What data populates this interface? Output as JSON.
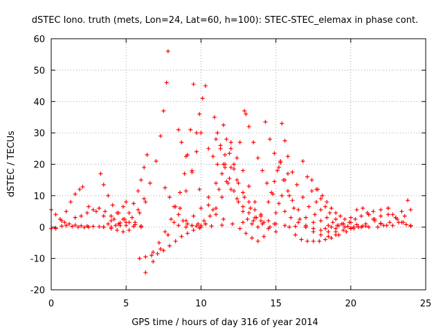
{
  "chart_data": {
    "type": "scatter",
    "title": "dSTEC Iono. truth (mets, Lon=24, Lat=60, h=100): STEC-STEC_elemax in phase cont.",
    "xlabel": "GPS time / hours of day 316 of year 2014",
    "ylabel": "dSTEC  / TECUs",
    "xlim": [
      0,
      25
    ],
    "ylim": [
      -20,
      60
    ],
    "xticks": [
      "0",
      "5",
      "10",
      "15",
      "20",
      "25"
    ],
    "yticks": [
      "-20",
      "-10",
      "0",
      "10",
      "20",
      "30",
      "40",
      "50",
      "60"
    ],
    "grid": true,
    "marker": "+",
    "color": "#ff0000",
    "series": [
      {
        "x": [
          0.0,
          0.3,
          0.7,
          1.0,
          1.4,
          1.8,
          2.2,
          2.5
        ],
        "y": [
          -0.5,
          -0.3,
          0.3,
          0.5,
          0.2,
          0.0,
          -0.1,
          0.0
        ]
      },
      {
        "x": [
          0.0,
          0.3,
          0.6,
          0.9,
          1.2,
          1.6,
          2.0,
          2.4,
          2.8,
          3.2,
          3.5
        ],
        "y": [
          5.5,
          4.0,
          2.5,
          1.5,
          1.0,
          0.6,
          0.4,
          0.3,
          0.2,
          0.1,
          0.0
        ]
      },
      {
        "x": [
          0.3,
          0.7,
          1.0,
          1.3,
          1.6,
          1.9,
          2.1
        ],
        "y": [
          -0.5,
          2.0,
          5.0,
          8.0,
          10.5,
          12.0,
          12.8
        ]
      },
      {
        "x": [
          1.6,
          2.0,
          2.4,
          2.8,
          3.2,
          3.6,
          4.0
        ],
        "y": [
          3.0,
          3.5,
          4.5,
          5.5,
          6.0,
          5.0,
          3.5
        ]
      },
      {
        "x": [
          2.5,
          3.0,
          3.5,
          4.0,
          4.5,
          5.0,
          5.5,
          6.0
        ],
        "y": [
          6.5,
          5.0,
          3.5,
          2.0,
          1.0,
          0.5,
          0.2,
          0.0
        ]
      },
      {
        "x": [
          3.3,
          3.5,
          3.8,
          4.1,
          4.4,
          4.8,
          5.2,
          5.6,
          6.0
        ],
        "y": [
          17.0,
          13.5,
          10.0,
          7.0,
          4.5,
          2.5,
          1.5,
          0.8,
          0.3
        ]
      },
      {
        "x": [
          3.5,
          4.0,
          4.4,
          4.8,
          5.2,
          5.6,
          5.9,
          6.3
        ],
        "y": [
          0.0,
          -0.5,
          -1.0,
          -1.5,
          -1.0,
          1.5,
          4.5,
          8.0
        ]
      },
      {
        "x": [
          4.0,
          4.3,
          4.6,
          4.9,
          5.2,
          5.5,
          5.8,
          6.0,
          6.2,
          6.4
        ],
        "y": [
          0.0,
          0.5,
          1.3,
          2.5,
          4.5,
          7.5,
          11.5,
          15.0,
          19.0,
          23.0
        ]
      },
      {
        "x": [
          3.8,
          4.2,
          4.5,
          4.8,
          5.0
        ],
        "y": [
          1.0,
          2.5,
          4.5,
          6.5,
          8.0
        ]
      },
      {
        "x": [
          4.6,
          5.0,
          5.4,
          5.8,
          6.2,
          6.6,
          7.0,
          7.3,
          7.5,
          7.7,
          7.8
        ],
        "y": [
          0.5,
          1.5,
          3.0,
          5.5,
          9.0,
          14.0,
          21.0,
          29.0,
          37.0,
          46.0,
          56.0
        ]
      },
      {
        "x": [
          5.9,
          6.3,
          6.7,
          7.1,
          7.5,
          7.9,
          8.3,
          8.7,
          9.1,
          9.5,
          9.9
        ],
        "y": [
          -10.0,
          -9.5,
          -9.0,
          -8.5,
          -7.5,
          -6.0,
          -4.5,
          -3.0,
          -2.0,
          -1.0,
          -0.3
        ]
      },
      {
        "x": [
          6.3,
          6.8,
          7.3,
          7.8,
          8.2,
          8.6,
          9.0,
          9.4,
          9.7,
          10.0
        ],
        "y": [
          -14.5,
          -11.0,
          -7.0,
          -2.5,
          1.5,
          6.0,
          11.5,
          18.0,
          24.0,
          30.0
        ]
      },
      {
        "x": [
          6.8,
          7.2,
          7.6,
          8.0,
          8.3,
          8.6,
          8.9,
          9.1,
          9.3,
          9.5
        ],
        "y": [
          -8.0,
          -5.0,
          -1.5,
          2.5,
          6.5,
          11.0,
          17.0,
          23.0,
          31.0,
          45.5
        ]
      },
      {
        "x": [
          7.6,
          7.9,
          8.2,
          8.5,
          8.8,
          9.1,
          9.4,
          9.7,
          10.0,
          10.3
        ],
        "y": [
          12.5,
          9.5,
          6.5,
          4.0,
          2.0,
          1.0,
          0.5,
          0.3,
          0.5,
          1.0
        ]
      },
      {
        "x": [
          8.5,
          8.7,
          9.0,
          9.4,
          9.9,
          10.5,
          11.0,
          11.5
        ],
        "y": [
          31.0,
          27.0,
          22.5,
          17.5,
          12.0,
          7.0,
          4.0,
          2.5
        ]
      },
      {
        "x": [
          8.5,
          9.0,
          9.5,
          10.0,
          10.5,
          11.0,
          11.5,
          12.0
        ],
        "y": [
          0.5,
          2.0,
          3.5,
          6.0,
          9.5,
          14.0,
          20.0,
          27.0
        ]
      },
      {
        "x": [
          9.0,
          9.4,
          9.8,
          10.2,
          10.6,
          11.0,
          11.4,
          11.8,
          12.2,
          12.6,
          13.0
        ],
        "y": [
          0.0,
          0.5,
          1.0,
          2.0,
          3.5,
          6.0,
          9.5,
          14.0,
          20.0,
          27.0,
          36.0
        ]
      },
      {
        "x": [
          9.7,
          9.9,
          10.1,
          10.3
        ],
        "y": [
          30.0,
          36.0,
          41.0,
          45.0
        ]
      },
      {
        "x": [
          10.3,
          10.8,
          11.2,
          11.6,
          12.0,
          12.4,
          12.8,
          13.2,
          13.6,
          14.0
        ],
        "y": [
          1.0,
          5.5,
          12.0,
          19.0,
          25.0,
          22.0,
          18.0,
          13.0,
          8.0,
          4.0
        ]
      },
      {
        "x": [
          10.5,
          10.8,
          11.1,
          11.4,
          11.7,
          12.0,
          12.4,
          12.8,
          13.2,
          13.6,
          14.0
        ],
        "y": [
          25.0,
          22.5,
          20.0,
          17.0,
          14.5,
          12.0,
          9.0,
          6.5,
          4.5,
          3.0,
          2.0
        ]
      },
      {
        "x": [
          10.9,
          11.1,
          11.3,
          11.6,
          11.9,
          12.2,
          12.5,
          12.8,
          13.1,
          13.4,
          13.8
        ],
        "y": [
          35.0,
          30.0,
          25.0,
          20.0,
          15.5,
          11.5,
          8.0,
          5.0,
          2.5,
          1.0,
          0.0
        ]
      },
      {
        "x": [
          11.0,
          11.3,
          11.6,
          12.0,
          12.4,
          12.8,
          13.2,
          13.6,
          14.0,
          14.5,
          15.0
        ],
        "y": [
          28.0,
          26.0,
          23.0,
          19.0,
          15.0,
          11.0,
          8.0,
          5.5,
          3.5,
          2.0,
          1.0
        ]
      },
      {
        "x": [
          11.5,
          11.7,
          11.9,
          12.2,
          12.5,
          12.9,
          13.3,
          13.7,
          14.1,
          14.5,
          15.0
        ],
        "y": [
          32.5,
          28.0,
          23.5,
          18.5,
          14.0,
          9.5,
          6.0,
          3.0,
          1.0,
          -0.5,
          -1.5
        ]
      },
      {
        "x": [
          10.0,
          10.7,
          11.4,
          12.1,
          12.8,
          13.5,
          14.2,
          14.9,
          15.6,
          16.3,
          17.0
        ],
        "y": [
          0.0,
          0.3,
          0.6,
          1.0,
          1.5,
          2.0,
          1.5,
          1.0,
          0.5,
          0.2,
          0.0
        ]
      },
      {
        "x": [
          12.6,
          13.0,
          13.4,
          13.8,
          14.2,
          14.6,
          15.0,
          15.4,
          15.8
        ],
        "y": [
          -0.5,
          -2.0,
          -3.5,
          -4.5,
          -3.0,
          0.0,
          4.5,
          10.0,
          17.0
        ]
      },
      {
        "x": [
          12.9,
          13.2,
          13.5,
          13.8,
          14.1,
          14.4,
          14.8,
          15.2,
          15.6,
          16.0,
          16.5,
          17.0
        ],
        "y": [
          37.0,
          32.0,
          27.0,
          22.0,
          18.0,
          14.0,
          10.5,
          7.5,
          5.0,
          3.0,
          1.5,
          0.5
        ]
      },
      {
        "x": [
          14.3,
          14.6,
          14.9,
          15.2,
          15.5,
          15.8,
          16.1,
          16.5,
          17.0,
          17.5
        ],
        "y": [
          33.5,
          28.0,
          23.5,
          19.0,
          15.0,
          11.5,
          8.5,
          5.5,
          3.0,
          1.5
        ]
      },
      {
        "x": [
          14.5,
          14.7,
          14.9,
          15.1,
          15.3
        ],
        "y": [
          8.0,
          11.0,
          14.5,
          18.0,
          21.0
        ]
      },
      {
        "x": [
          15.4,
          15.6,
          15.8,
          16.1,
          16.4,
          16.8,
          17.2,
          17.6,
          18.0,
          18.5,
          19.0
        ],
        "y": [
          33.0,
          27.5,
          22.5,
          17.5,
          13.5,
          9.5,
          6.5,
          4.0,
          2.0,
          0.5,
          -0.5
        ]
      },
      {
        "x": [
          15.3,
          15.6,
          15.9,
          16.2,
          16.6,
          17.0,
          17.5,
          18.0,
          18.5,
          19.0
        ],
        "y": [
          20.5,
          15.0,
          10.0,
          6.0,
          2.5,
          0.0,
          -1.5,
          -2.5,
          -3.0,
          -2.5
        ]
      },
      {
        "x": [
          15.9,
          16.3,
          16.7,
          17.1,
          17.5,
          17.9,
          18.3,
          18.7,
          19.2,
          19.7,
          20.2,
          20.7
        ],
        "y": [
          0.0,
          -2.5,
          -4.0,
          -4.5,
          -4.5,
          -4.5,
          -4.0,
          -3.5,
          -2.5,
          -1.5,
          -0.5,
          0.0
        ]
      },
      {
        "x": [
          16.8,
          17.1,
          17.4,
          17.7,
          18.0,
          18.4,
          18.8,
          19.2,
          19.6,
          20.0
        ],
        "y": [
          21.0,
          16.0,
          11.5,
          8.0,
          5.5,
          3.0,
          1.5,
          0.5,
          0.0,
          -0.3
        ]
      },
      {
        "x": [
          17.4,
          17.7,
          18.0,
          18.3,
          18.6,
          19.0,
          19.4,
          19.8,
          20.2
        ],
        "y": [
          15.0,
          12.0,
          9.0,
          6.5,
          4.5,
          2.5,
          1.0,
          0.2,
          0.0
        ]
      },
      {
        "x": [
          17.8,
          18.1,
          18.4,
          18.7,
          19.0,
          19.3,
          19.6,
          20.0,
          20.4,
          20.8,
          21.2
        ],
        "y": [
          12.0,
          10.0,
          8.0,
          6.0,
          4.5,
          3.5,
          2.5,
          1.5,
          0.8,
          0.3,
          0.0
        ]
      },
      {
        "x": [
          17.0,
          17.5,
          18.0,
          18.5,
          19.0,
          19.5,
          20.0,
          20.5,
          21.0
        ],
        "y": [
          0.0,
          -0.5,
          -1.0,
          -1.5,
          -1.5,
          -1.0,
          -0.5,
          0.0,
          0.3
        ]
      },
      {
        "x": [
          18.3,
          18.7,
          19.1,
          19.5,
          19.9,
          20.3,
          20.7,
          21.1,
          21.5,
          22.0,
          22.5
        ],
        "y": [
          -0.5,
          0.0,
          0.5,
          1.0,
          1.5,
          2.5,
          3.5,
          4.5,
          5.0,
          5.5,
          6.0
        ]
      },
      {
        "x": [
          19.5,
          20.0,
          20.4,
          20.8,
          21.2,
          21.6,
          22.0
        ],
        "y": [
          1.0,
          3.0,
          5.5,
          6.0,
          4.0,
          2.0,
          1.0
        ]
      },
      {
        "x": [
          20.5,
          21.0,
          21.5,
          22.0,
          22.5,
          23.0,
          23.5,
          24.0
        ],
        "y": [
          0.0,
          1.0,
          2.5,
          3.5,
          4.0,
          3.0,
          1.5,
          0.5
        ]
      },
      {
        "x": [
          21.2,
          21.6,
          22.0,
          22.4,
          22.8,
          23.2,
          23.6,
          24.0
        ],
        "y": [
          4.0,
          2.5,
          1.2,
          0.5,
          0.5,
          1.5,
          3.5,
          5.5
        ]
      },
      {
        "x": [
          21.8,
          22.2,
          22.6,
          23.0,
          23.4,
          23.8
        ],
        "y": [
          0.0,
          0.5,
          1.5,
          3.0,
          5.0,
          8.5
        ]
      },
      {
        "x": [
          22.5,
          22.8,
          23.1,
          23.4,
          23.7,
          24.0
        ],
        "y": [
          6.0,
          4.0,
          2.5,
          1.5,
          0.8,
          0.3
        ]
      }
    ]
  }
}
